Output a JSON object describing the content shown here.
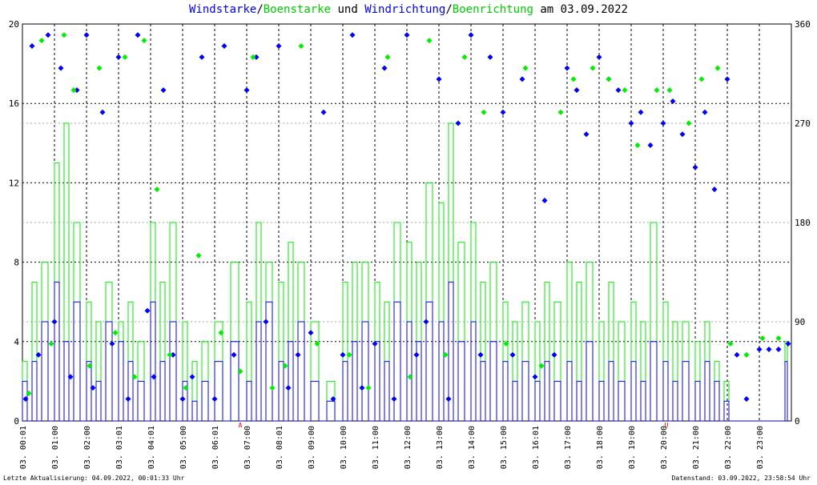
{
  "title": {
    "part1": "Windstarke",
    "sep1": "/",
    "part2": "Boenstarke",
    "part3": " und ",
    "part4": "Windrichtung",
    "sep2": "/",
    "part5": "Boenrichtung",
    "part6": " am 03.09.2022"
  },
  "footer": {
    "left": "Letzte Aktualisierung: 04.09.2022, 00:01:33 Uhr",
    "right": "Datenstand: 03.09.2022, 23:58:54 Uhr"
  },
  "markers": {
    "a_label": "A",
    "u_label": "U"
  },
  "colors": {
    "wind": "#0000ff",
    "gust": "#00ee00",
    "grid": "#000000"
  },
  "chart_data": {
    "type": "line",
    "left_axis": {
      "ylim": [
        0,
        20
      ],
      "ticks": [
        "0",
        "4",
        "8",
        "12",
        "16",
        "20"
      ]
    },
    "right_axis": {
      "ylim": [
        0,
        360
      ],
      "ticks": [
        "0",
        "90",
        "180",
        "270",
        "360"
      ]
    },
    "x_ticks": [
      "03. 00:01",
      "03. 01:00",
      "03. 02:00",
      "03. 03:01",
      "03. 04:01",
      "03. 05:00",
      "03. 06:01",
      "03. 07:00",
      "03. 08:01",
      "03. 09:00",
      "03. 10:00",
      "03. 11:00",
      "03. 12:00",
      "03. 13:00",
      "03. 14:00",
      "03. 15:00",
      "03. 16:01",
      "03. 17:00",
      "03. 18:00",
      "03. 19:00",
      "03. 20:00",
      "03. 21:00",
      "03. 22:00",
      "03. 23:00"
    ],
    "xlim_hours": [
      0,
      24
    ],
    "series": [
      {
        "name": "Windstarke",
        "kind": "line",
        "axis": "left",
        "x": [
          0,
          0.3,
          0.6,
          1,
          1.3,
          1.6,
          2,
          2.3,
          2.6,
          3,
          3.3,
          3.6,
          4,
          4.3,
          4.6,
          5,
          5.3,
          5.6,
          6,
          6.5,
          7,
          7.3,
          7.6,
          8,
          8.3,
          8.6,
          9,
          9.5,
          10,
          10.3,
          10.6,
          11,
          11.3,
          11.6,
          12,
          12.3,
          12.6,
          13,
          13.3,
          13.6,
          14,
          14.3,
          14.6,
          15,
          15.3,
          15.6,
          16,
          16.3,
          16.6,
          17,
          17.3,
          17.6,
          18,
          18.3,
          18.6,
          19,
          19.3,
          19.6,
          20,
          20.3,
          20.6,
          21,
          21.3,
          21.6,
          21.9,
          22.2,
          22.5,
          23,
          23.3,
          23.5,
          23.8
        ],
        "y": [
          2,
          3,
          5,
          7,
          4,
          6,
          3,
          2,
          5,
          4,
          3,
          2,
          6,
          3,
          5,
          2,
          1,
          2,
          3,
          4,
          2,
          5,
          6,
          3,
          4,
          5,
          2,
          1,
          3,
          4,
          5,
          4,
          3,
          6,
          5,
          4,
          6,
          5,
          7,
          4,
          5,
          3,
          4,
          3,
          2,
          3,
          2,
          3,
          2,
          3,
          2,
          4,
          2,
          3,
          2,
          3,
          2,
          4,
          3,
          2,
          3,
          2,
          3,
          2,
          1,
          0,
          0,
          0,
          0,
          0,
          3
        ]
      },
      {
        "name": "Boenstarke",
        "kind": "line",
        "axis": "left",
        "x": [
          0,
          0.3,
          0.6,
          1,
          1.3,
          1.6,
          2,
          2.3,
          2.6,
          3,
          3.3,
          3.6,
          4,
          4.3,
          4.6,
          5,
          5.3,
          5.6,
          6,
          6.5,
          7,
          7.3,
          7.6,
          8,
          8.3,
          8.6,
          9,
          9.5,
          10,
          10.3,
          10.6,
          11,
          11.3,
          11.6,
          12,
          12.3,
          12.6,
          13,
          13.3,
          13.6,
          14,
          14.3,
          14.6,
          15,
          15.3,
          15.6,
          16,
          16.3,
          16.6,
          17,
          17.3,
          17.6,
          18,
          18.3,
          18.6,
          19,
          19.3,
          19.6,
          20,
          20.3,
          20.6,
          21,
          21.3,
          21.6,
          21.9,
          22.2,
          22.5,
          23,
          23.3,
          23.5,
          23.8
        ],
        "y": [
          3,
          7,
          8,
          13,
          15,
          10,
          6,
          5,
          7,
          5,
          6,
          4,
          10,
          7,
          10,
          5,
          3,
          4,
          5,
          8,
          6,
          10,
          8,
          7,
          9,
          8,
          5,
          2,
          7,
          8,
          8,
          7,
          6,
          10,
          9,
          8,
          12,
          11,
          15,
          9,
          10,
          7,
          8,
          6,
          5,
          6,
          5,
          7,
          6,
          8,
          7,
          8,
          5,
          7,
          5,
          6,
          5,
          10,
          6,
          5,
          5,
          4,
          5,
          3,
          2,
          0,
          0,
          0,
          0,
          0,
          4
        ]
      },
      {
        "name": "Windrichtung",
        "kind": "scatter",
        "axis": "right",
        "x": [
          0.1,
          0.3,
          0.5,
          0.8,
          1.0,
          1.2,
          1.5,
          1.7,
          2.0,
          2.2,
          2.5,
          2.8,
          3.0,
          3.3,
          3.6,
          3.9,
          4.1,
          4.4,
          4.7,
          5.0,
          5.3,
          5.6,
          6.0,
          6.3,
          6.6,
          7.0,
          7.3,
          7.6,
          8.0,
          8.3,
          8.6,
          9.0,
          9.4,
          9.7,
          10.0,
          10.3,
          10.6,
          11.0,
          11.3,
          11.6,
          12.0,
          12.3,
          12.6,
          13.0,
          13.3,
          13.6,
          14.0,
          14.3,
          14.6,
          15.0,
          15.3,
          15.6,
          16.0,
          16.3,
          16.6,
          17.0,
          17.3,
          17.6,
          18.0,
          18.3,
          18.6,
          19.0,
          19.3,
          19.6,
          20.0,
          20.3,
          20.6,
          21.0,
          21.3,
          21.6,
          22.0,
          22.3,
          22.6,
          23.0,
          23.3,
          23.6,
          23.9
        ],
        "y": [
          20,
          340,
          60,
          350,
          90,
          320,
          40,
          300,
          350,
          30,
          280,
          70,
          330,
          20,
          350,
          100,
          40,
          300,
          60,
          20,
          40,
          330,
          20,
          340,
          60,
          300,
          330,
          90,
          340,
          30,
          60,
          80,
          280,
          20,
          60,
          350,
          30,
          70,
          320,
          20,
          350,
          60,
          90,
          310,
          20,
          270,
          350,
          60,
          330,
          280,
          60,
          310,
          40,
          200,
          60,
          320,
          300,
          260,
          330,
          310,
          300,
          270,
          280,
          250,
          270,
          290,
          260,
          230,
          280,
          210,
          310,
          60,
          20,
          65,
          65,
          65,
          70
        ]
      },
      {
        "name": "Boenrichtung",
        "kind": "scatter",
        "axis": "right",
        "x": [
          0.2,
          0.6,
          0.9,
          1.3,
          1.6,
          2.1,
          2.4,
          2.9,
          3.2,
          3.5,
          3.8,
          4.2,
          4.6,
          5.1,
          5.5,
          6.2,
          6.8,
          7.2,
          7.8,
          8.2,
          8.7,
          9.2,
          10.2,
          10.8,
          11.4,
          12.1,
          12.7,
          13.2,
          13.8,
          14.4,
          15.1,
          15.7,
          16.2,
          16.8,
          17.2,
          17.8,
          18.3,
          18.8,
          19.2,
          19.8,
          20.2,
          20.8,
          21.2,
          21.7,
          22.1,
          22.6,
          23.1,
          23.6
        ],
        "y": [
          25,
          345,
          70,
          350,
          300,
          50,
          320,
          80,
          330,
          40,
          345,
          210,
          60,
          30,
          150,
          80,
          45,
          330,
          30,
          50,
          340,
          70,
          60,
          30,
          330,
          40,
          345,
          60,
          330,
          280,
          70,
          320,
          50,
          280,
          310,
          320,
          310,
          300,
          250,
          300,
          300,
          270,
          310,
          320,
          70,
          60,
          75,
          75
        ]
      }
    ]
  }
}
